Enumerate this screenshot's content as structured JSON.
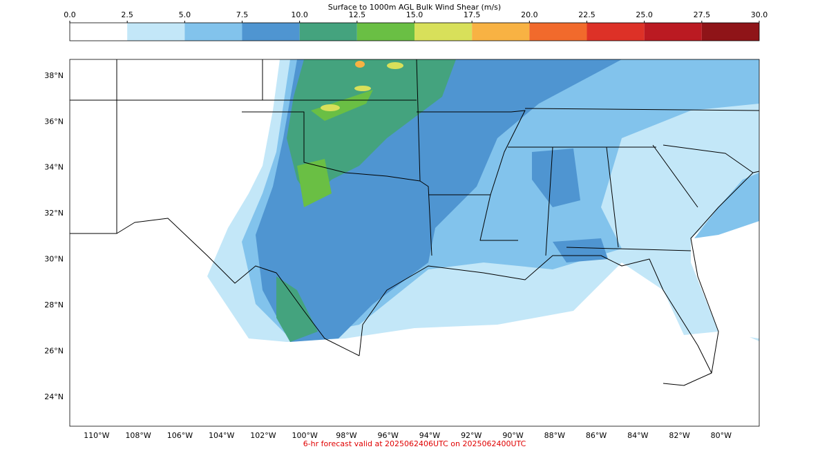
{
  "colorbar": {
    "title": "Surface to 1000m AGL Bulk Wind Shear (m/s)",
    "lim": [
      0,
      30
    ],
    "ticks": [
      {
        "value": 0,
        "label": "0.0"
      },
      2.5,
      {
        "value": 5,
        "label": "5.0"
      },
      7.5,
      {
        "value": 10,
        "label": "10.0"
      },
      12.5,
      {
        "value": 15,
        "label": "15.0"
      },
      17.5,
      {
        "value": 20,
        "label": "20.0"
      },
      22.5,
      {
        "value": 25,
        "label": "25.0"
      },
      27.5,
      {
        "value": 30,
        "label": "30.0"
      }
    ],
    "colors": [
      "#ffffff",
      "#c3e7f8",
      "#82c3ec",
      "#4f95d1",
      "#44a37e",
      "#6abf44",
      "#d8e05a",
      "#f8b243",
      "#f16a2c",
      "#dd3127",
      "#bb1a22",
      "#8f1418"
    ]
  },
  "map": {
    "xlim": [
      -111.29,
      -78.17
    ],
    "ylim": [
      22.73,
      38.72
    ],
    "lat_ticks": [
      {
        "value": 24,
        "label": "24°N"
      },
      {
        "value": 26,
        "label": "26°N"
      },
      {
        "value": 28,
        "label": "28°N"
      },
      {
        "value": 30,
        "label": "30°N"
      },
      {
        "value": 32,
        "label": "32°N"
      },
      {
        "value": 34,
        "label": "34°N"
      },
      {
        "value": 36,
        "label": "36°N"
      },
      {
        "value": 38,
        "label": "38°N"
      }
    ],
    "lon_ticks": [
      {
        "value": -110,
        "label": "110°W"
      },
      {
        "value": -108,
        "label": "108°W"
      },
      {
        "value": -106,
        "label": "106°W"
      },
      {
        "value": -104,
        "label": "104°W"
      },
      {
        "value": -102,
        "label": "102°W"
      },
      {
        "value": -100,
        "label": "100°W"
      },
      {
        "value": -98,
        "label": "98°W"
      },
      {
        "value": -96,
        "label": "96°W"
      },
      {
        "value": -94,
        "label": "94°W"
      },
      {
        "value": -92,
        "label": "92°W"
      },
      {
        "value": -90,
        "label": "90°W"
      },
      {
        "value": -88,
        "label": "88°W"
      },
      {
        "value": -86,
        "label": "86°W"
      },
      {
        "value": -84,
        "label": "84°W"
      },
      {
        "value": -82,
        "label": "82°W"
      },
      {
        "value": -80,
        "label": "80°W"
      }
    ]
  },
  "caption": "6-hr forecast valid at 2025062406UTC on 2025062400UTC"
}
